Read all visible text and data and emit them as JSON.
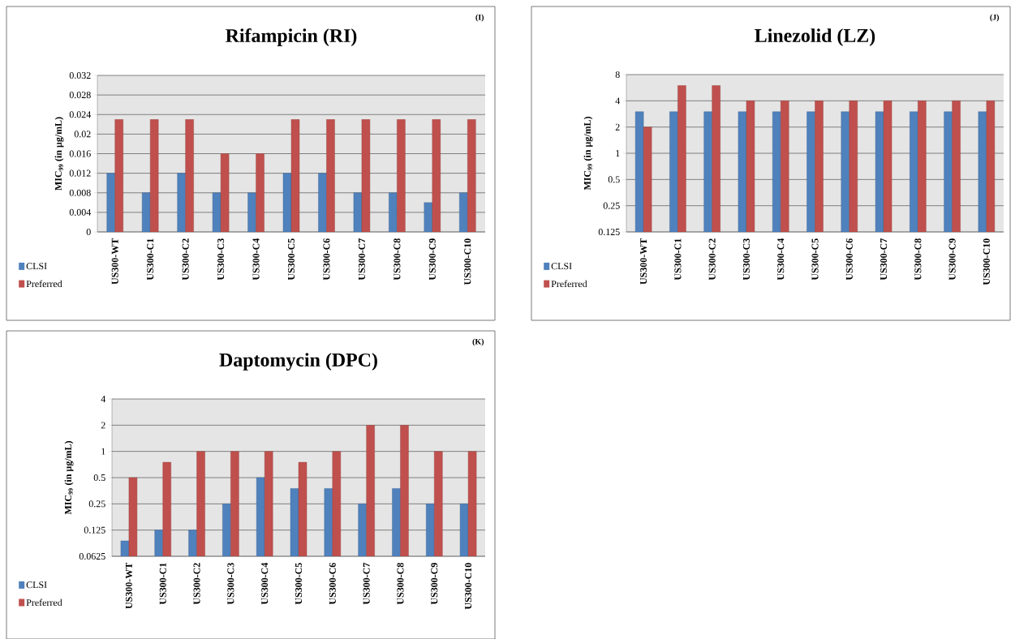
{
  "chart_data": [
    {
      "type": "bar",
      "title": "Rifampicin (RI)",
      "ylabel": "MIC$_{99}$ (in µg/mL)",
      "annotations": [
        "(I)"
      ],
      "categories": [
        "US300-WT",
        "US300-C1",
        "US300-C2",
        "US300-C3",
        "US300-C4",
        "US300-C5",
        "US300-C6",
        "US300-C7",
        "US300-C8",
        "US300-C9",
        "US300-C10"
      ],
      "series": [
        {
          "name": "CLSI",
          "color": "#4f81bd",
          "values": [
            0.012,
            0.008,
            0.012,
            0.008,
            0.008,
            0.012,
            0.012,
            0.008,
            0.008,
            0.006,
            0.008
          ]
        },
        {
          "name": "Preferred",
          "color": "#c0504d",
          "values": [
            0.023,
            0.023,
            0.023,
            0.016,
            0.016,
            0.023,
            0.023,
            0.023,
            0.023,
            0.023,
            0.023
          ]
        }
      ],
      "ylim": [
        0,
        0.032
      ],
      "yticks": [
        0,
        0.004,
        0.008,
        0.012,
        0.016,
        0.02,
        0.024,
        0.028,
        0.032
      ],
      "grid": "y",
      "legend": "bottom left"
    },
    {
      "type": "bar",
      "title": "Linezolid (LZ)",
      "ylabel": "MIC$_{99}$ (in µg/mL)",
      "annotations": [
        "(J)"
      ],
      "categories": [
        "US300-WT",
        "US300-C1",
        "US300-C2",
        "US300-C3",
        "US300-C4",
        "US300-C5",
        "US300-C6",
        "US300-C7",
        "US300-C8",
        "US300-C9",
        "US300-C10"
      ],
      "series": [
        {
          "name": "CLSI",
          "color": "#4f81bd",
          "values": [
            3,
            3,
            3,
            3,
            3,
            3,
            3,
            3,
            3,
            3,
            3
          ]
        },
        {
          "name": "Preferred",
          "color": "#c0504d",
          "values": [
            2,
            6,
            6,
            4,
            4,
            4,
            4,
            4,
            4,
            4,
            4
          ]
        }
      ],
      "ylim": [
        0.125,
        8
      ],
      "yticks": [
        0.125,
        0.25,
        0.5,
        1,
        2,
        4,
        8
      ],
      "log": "y",
      "grid": "y",
      "legend": "bottom left"
    },
    {
      "type": "bar",
      "title": "Daptomycin (DPC)",
      "ylabel": "MIC$_{99}$ (in µg/mL)",
      "annotations": [
        "(K)"
      ],
      "categories": [
        "US300-WT",
        "US300-C1",
        "US300-C2",
        "US300-C3",
        "US300-C4",
        "US300-C5",
        "US300-C6",
        "US300-C7",
        "US300-C8",
        "US300-C9",
        "US300-C10"
      ],
      "series": [
        {
          "name": "CLSI",
          "color": "#4f81bd",
          "values": [
            0.094,
            0.125,
            0.125,
            0.25,
            0.5,
            0.375,
            0.375,
            0.25,
            0.375,
            0.25,
            0.25
          ]
        },
        {
          "name": "Preferred",
          "color": "#c0504d",
          "values": [
            0.5,
            0.75,
            1,
            1,
            1,
            0.75,
            1,
            2,
            2,
            1,
            1
          ]
        }
      ],
      "ylim": [
        0.0625,
        4
      ],
      "yticks": [
        0.0625,
        0.125,
        0.25,
        0.5,
        1,
        2,
        4
      ],
      "log": "y",
      "grid": "y",
      "legend": "bottom left"
    }
  ]
}
